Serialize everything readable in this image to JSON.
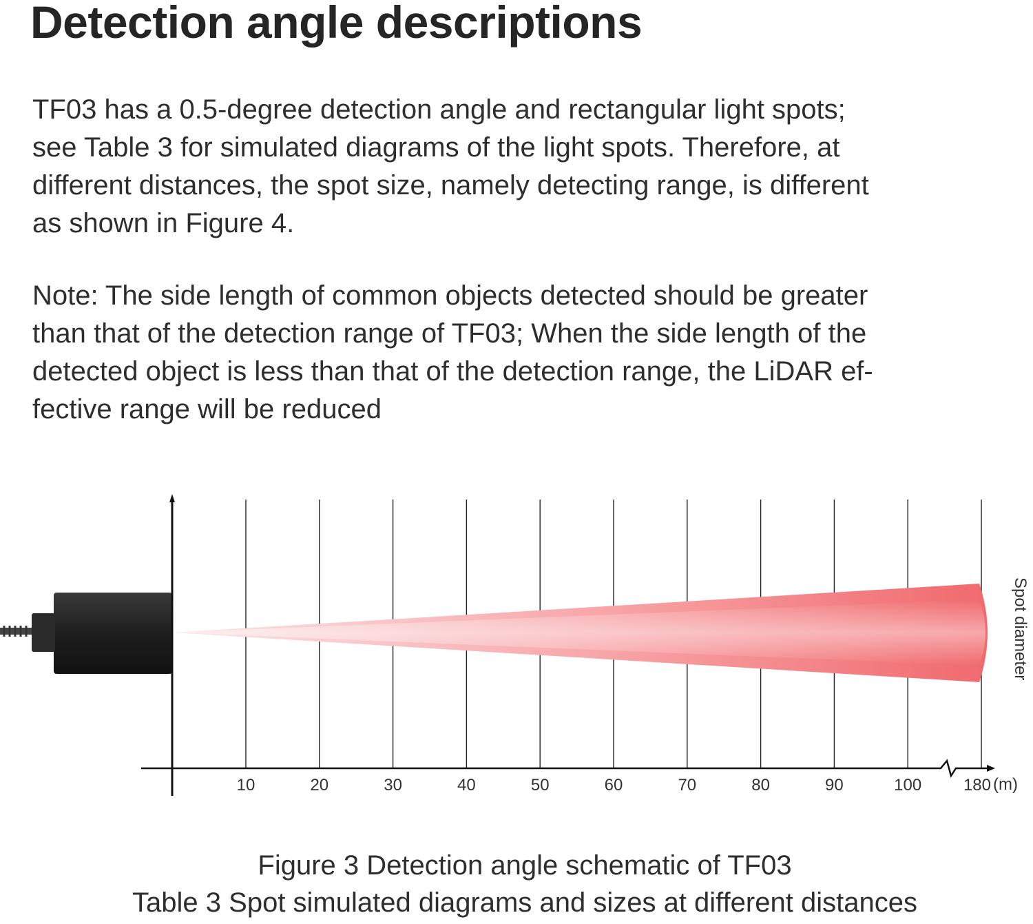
{
  "title": "Detection angle descriptions",
  "paragraph1": [
    "TF03 has a 0.5-degree detection angle and rectangular light spots;",
    "see Table 3 for simulated diagrams of the light spots. Therefore, at",
    "different distances, the spot size, namely detecting range, is different",
    "as shown in Figure 4."
  ],
  "paragraph2": [
    "Note: The side length of common objects detected should be greater",
    "than that of the detection range of TF03; When the side length of the",
    "detected object is less than that of the detection range, the LiDAR ef-",
    "fective range will be reduced"
  ],
  "diagram": {
    "x_ticks": [
      "10",
      "20",
      "30",
      "40",
      "50",
      "60",
      "70",
      "80",
      "90",
      "100",
      "180"
    ],
    "x_unit": "(m)",
    "y_label": "Spot diameter",
    "beam_color": "#f06a6e",
    "device_color": "#1f1f1f"
  },
  "caption1": "Figure 3 Detection angle schematic of TF03",
  "caption2": "Table 3 Spot simulated diagrams and sizes at different distances"
}
